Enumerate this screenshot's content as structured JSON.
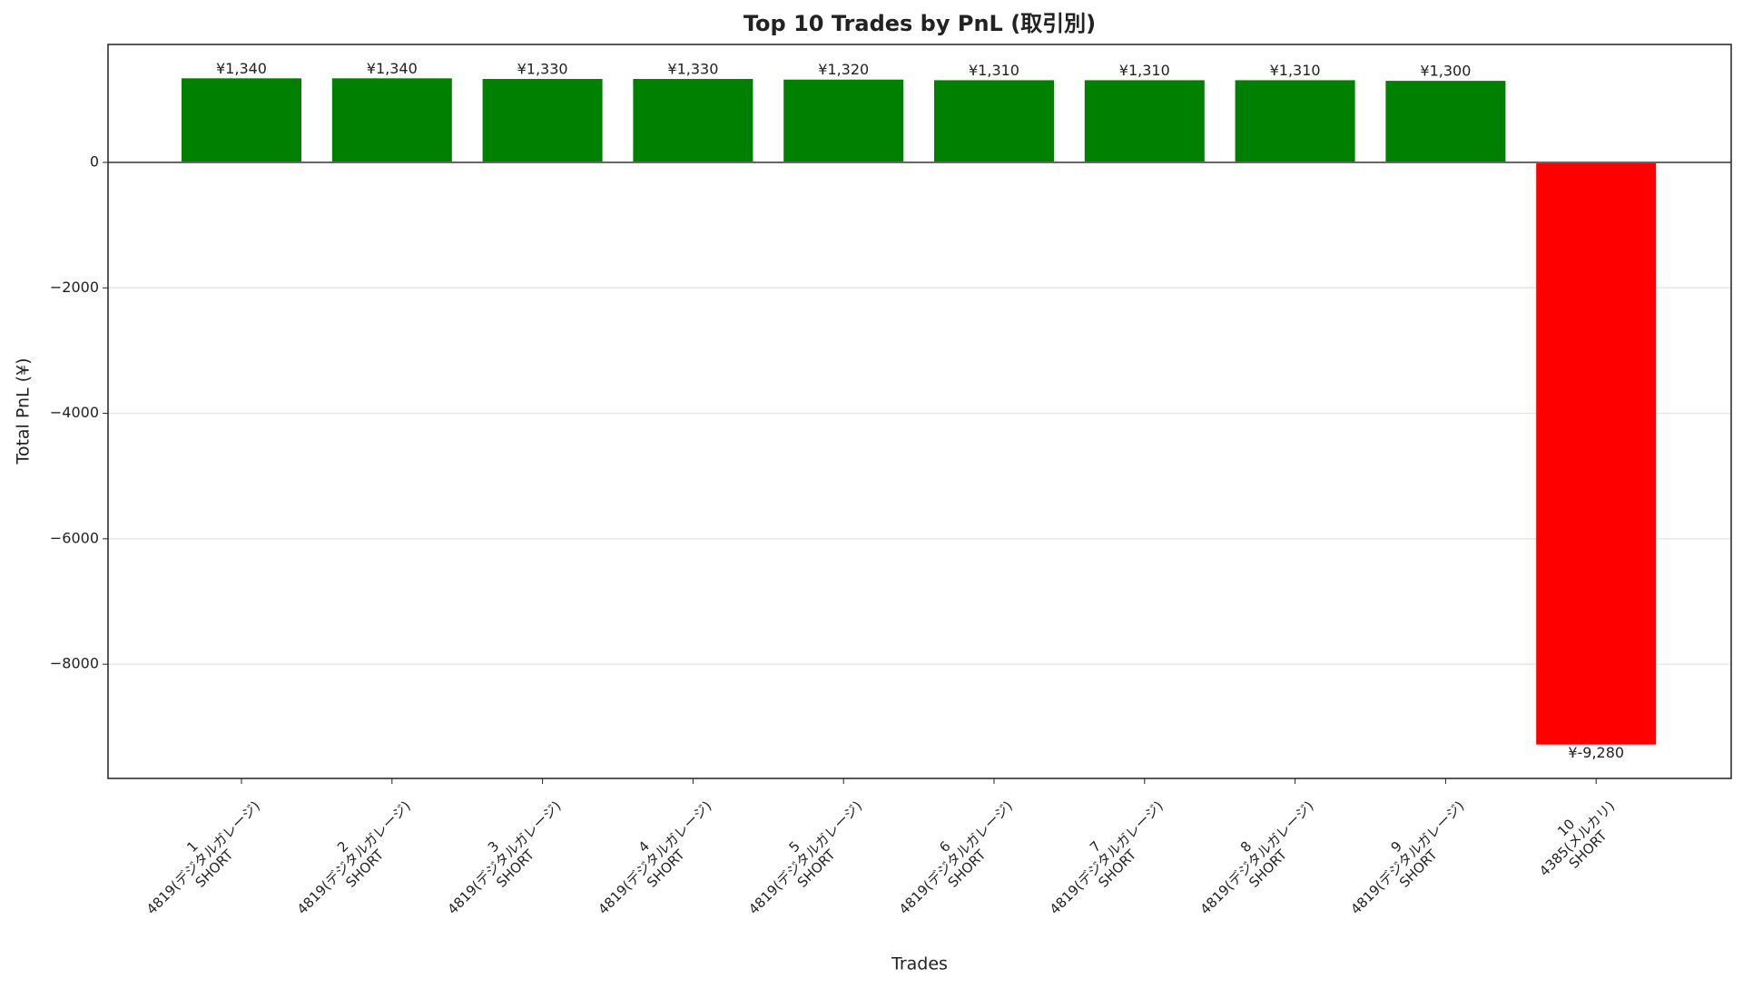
{
  "chart_data": {
    "type": "bar",
    "title": "Top 10 Trades by PnL (取引別)",
    "x_label": "Trades",
    "y_label": "Total PnL (¥)",
    "categories": [
      [
        "1",
        "4819(デジタルガレージ)",
        "SHORT"
      ],
      [
        "2",
        "4819(デジタルガレージ)",
        "SHORT"
      ],
      [
        "3",
        "4819(デジタルガレージ)",
        "SHORT"
      ],
      [
        "4",
        "4819(デジタルガレージ)",
        "SHORT"
      ],
      [
        "5",
        "4819(デジタルガレージ)",
        "SHORT"
      ],
      [
        "6",
        "4819(デジタルガレージ)",
        "SHORT"
      ],
      [
        "7",
        "4819(デジタルガレージ)",
        "SHORT"
      ],
      [
        "8",
        "4819(デジタルガレージ)",
        "SHORT"
      ],
      [
        "9",
        "4819(デジタルガレージ)",
        "SHORT"
      ],
      [
        "10",
        "4385(メルカリ)",
        "SHORT"
      ]
    ],
    "values": [
      1340,
      1340,
      1330,
      1330,
      1320,
      1310,
      1310,
      1310,
      1300,
      -9280
    ],
    "value_labels": [
      "¥1,340",
      "¥1,340",
      "¥1,330",
      "¥1,330",
      "¥1,320",
      "¥1,310",
      "¥1,310",
      "¥1,310",
      "¥1,300",
      "¥-9,280"
    ],
    "colors": [
      "#008000",
      "#008000",
      "#008000",
      "#008000",
      "#008000",
      "#008000",
      "#008000",
      "#008000",
      "#008000",
      "#ff0000"
    ],
    "ylim": [
      -9820,
      1880
    ],
    "yticks": [
      {
        "value": -8000,
        "label": "−8000"
      },
      {
        "value": -6000,
        "label": "−6000"
      },
      {
        "value": -4000,
        "label": "−4000"
      },
      {
        "value": -2000,
        "label": "−2000"
      },
      0
    ],
    "grid": true
  }
}
